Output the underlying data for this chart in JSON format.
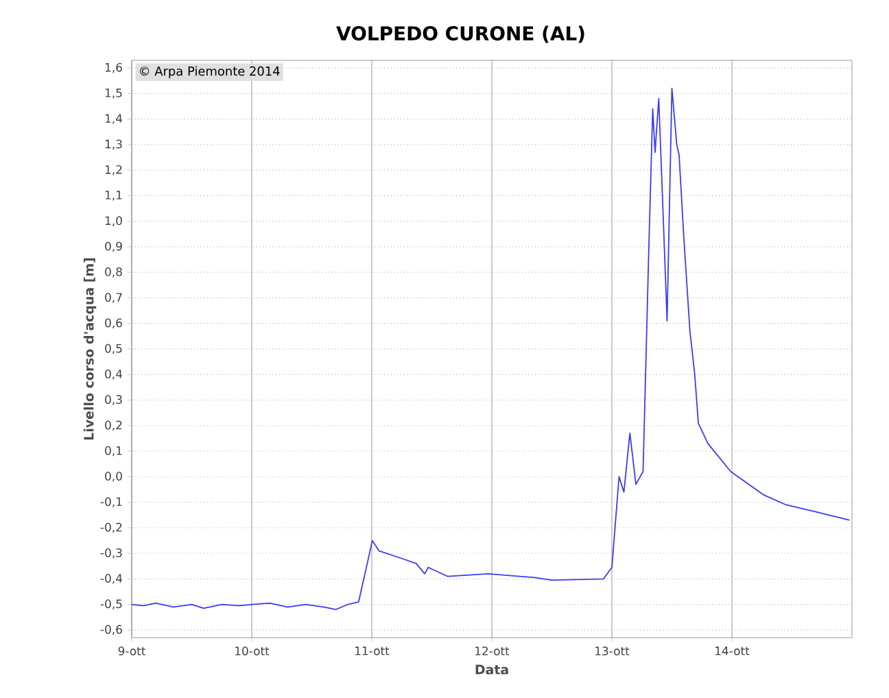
{
  "chart_data": {
    "type": "line",
    "title": "VOLPEDO CURONE (AL)",
    "xlabel": "Data",
    "ylabel": "Livello corso d'acqua [m]",
    "annotations": [
      "© Arpa Piemonte 2014"
    ],
    "x": [
      "2014-10-09T00:00",
      "2014-10-09T02:24",
      "2014-10-09T04:48",
      "2014-10-09T08:24",
      "2014-10-09T12:00",
      "2014-10-09T14:24",
      "2014-10-09T18:00",
      "2014-10-09T21:36",
      "2014-10-10T00:00",
      "2014-10-10T03:36",
      "2014-10-10T07:12",
      "2014-10-10T10:48",
      "2014-10-10T14:24",
      "2014-10-10T16:48",
      "2014-10-10T19:12",
      "2014-10-10T21:22",
      "2014-10-11T00:07",
      "2014-10-11T01:26",
      "2014-10-11T06:00",
      "2014-10-11T08:53",
      "2014-10-11T10:34",
      "2014-10-11T11:17",
      "2014-10-11T15:07",
      "2014-10-11T23:17",
      "2014-10-12T08:38",
      "2014-10-12T12:00",
      "2014-10-12T22:19",
      "2014-10-13T00:00",
      "2014-10-13T01:26",
      "2014-10-13T02:24",
      "2014-10-13T03:36",
      "2014-10-13T04:48",
      "2014-10-13T06:14",
      "2014-10-13T07:26",
      "2014-10-13T08:10",
      "2014-10-13T08:38",
      "2014-10-13T09:22",
      "2014-10-13T10:05",
      "2014-10-13T11:02",
      "2014-10-13T12:00",
      "2014-10-13T12:58",
      "2014-10-13T13:26",
      "2014-10-13T14:24",
      "2014-10-13T15:36",
      "2014-10-13T16:34",
      "2014-10-13T17:17",
      "2014-10-13T19:12",
      "2014-10-13T23:46",
      "2014-10-14T06:14",
      "2014-10-14T10:48",
      "2014-10-14T17:17",
      "2014-10-14T23:31"
    ],
    "series": [
      {
        "color": "#3b3bf5",
        "values": [
          -0.5,
          -0.505,
          -0.495,
          -0.51,
          -0.5,
          -0.515,
          -0.5,
          -0.505,
          -0.5,
          -0.495,
          -0.51,
          -0.5,
          -0.51,
          -0.52,
          -0.5,
          -0.49,
          -0.25,
          -0.29,
          -0.32,
          -0.34,
          -0.38,
          -0.355,
          -0.39,
          -0.38,
          -0.395,
          -0.405,
          -0.4,
          -0.355,
          0.0,
          -0.06,
          0.17,
          -0.03,
          0.02,
          0.93,
          1.44,
          1.27,
          1.48,
          1.11,
          0.61,
          1.52,
          1.3,
          1.26,
          0.93,
          0.57,
          0.4,
          0.21,
          0.13,
          0.02,
          -0.07,
          -0.11,
          -0.14,
          -0.17
        ]
      }
    ],
    "xlim": [
      "2014-10-09",
      "2014-10-15"
    ],
    "xticks": [
      {
        "value": "2014-10-09",
        "label": "9-ott"
      },
      {
        "value": "2014-10-10",
        "label": "10-ott"
      },
      {
        "value": "2014-10-11",
        "label": "11-ott"
      },
      {
        "value": "2014-10-12",
        "label": "12-ott"
      },
      {
        "value": "2014-10-13",
        "label": "13-ott"
      },
      {
        "value": "2014-10-14",
        "label": "14-ott"
      }
    ],
    "ylim": [
      -0.63,
      1.63
    ],
    "yticks": [
      {
        "value": -0.6,
        "label": "-0,6"
      },
      {
        "value": -0.5,
        "label": "-0,5"
      },
      {
        "value": -0.4,
        "label": "-0,4"
      },
      {
        "value": -0.3,
        "label": "-0,3"
      },
      {
        "value": -0.2,
        "label": "-0,2"
      },
      {
        "value": -0.1,
        "label": "-0,1"
      },
      {
        "value": 0.0,
        "label": "0,0"
      },
      {
        "value": 0.1,
        "label": "0,1"
      },
      {
        "value": 0.2,
        "label": "0,2"
      },
      {
        "value": 0.3,
        "label": "0,3"
      },
      {
        "value": 0.4,
        "label": "0,4"
      },
      {
        "value": 0.5,
        "label": "0,5"
      },
      {
        "value": 0.6,
        "label": "0,6"
      },
      {
        "value": 0.7,
        "label": "0,7"
      },
      {
        "value": 0.8,
        "label": "0,8"
      },
      {
        "value": 0.9,
        "label": "0,9"
      },
      {
        "value": 1.0,
        "label": "1,0"
      },
      {
        "value": 1.1,
        "label": "1,1"
      },
      {
        "value": 1.2,
        "label": "1,2"
      },
      {
        "value": 1.3,
        "label": "1,3"
      },
      {
        "value": 1.4,
        "label": "1,4"
      },
      {
        "value": 1.5,
        "label": "1,5"
      },
      {
        "value": 1.6,
        "label": "1,6"
      }
    ],
    "grid": true,
    "marker": "none",
    "line_style": "solid"
  }
}
